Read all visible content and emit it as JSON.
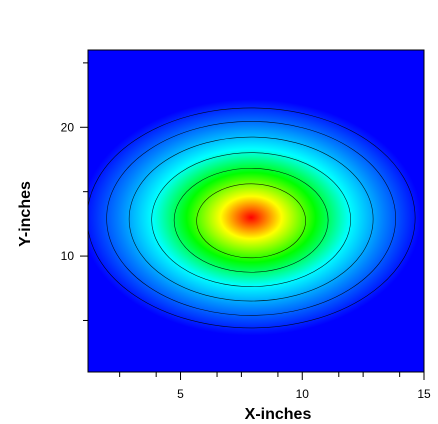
{
  "chart_data": {
    "type": "heatmap",
    "title": "",
    "xlabel": "X-inches",
    "ylabel": "Y-inches",
    "xlim": [
      1.2,
      15
    ],
    "ylim": [
      1,
      26
    ],
    "x_ticks": [
      5,
      10,
      15
    ],
    "x_minor_ticks": [
      2.5,
      4,
      6.5,
      7.5,
      9,
      11.5,
      12.5,
      14
    ],
    "y_ticks": [
      10,
      20
    ],
    "y_minor_ticks": [
      5,
      15,
      25
    ],
    "peak": {
      "x": 7.9,
      "y": 13
    },
    "contour_levels": [
      0.12,
      0.25,
      0.4,
      0.55,
      0.7,
      0.85
    ],
    "colormap": [
      "#0000ff",
      "#0080ff",
      "#00ffff",
      "#00ff00",
      "#ffff00",
      "#ff0000"
    ],
    "background_color": "#0000ff",
    "grid": false,
    "legend": "none"
  }
}
